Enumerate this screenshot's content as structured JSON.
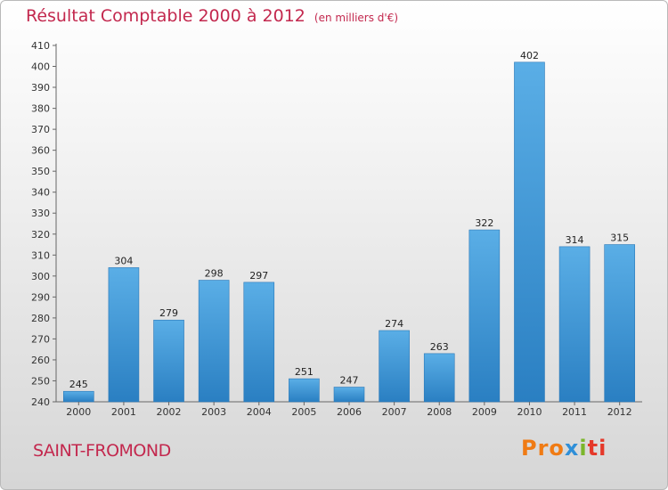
{
  "header": {
    "title": "Résultat Comptable 2000 à 2012",
    "subtitle": "(en milliers d'€)"
  },
  "footer": {
    "place": "SAINT-FROMOND",
    "logo_parts": [
      "Pro",
      "x",
      "i",
      "ti"
    ]
  },
  "colors": {
    "bar_light": "#5aaee6",
    "bar_dark": "#2a7fc2",
    "accent": "#c3284e"
  },
  "chart_data": {
    "type": "bar",
    "title": "Résultat Comptable 2000 à 2012",
    "subtitle": "(en milliers d'€)",
    "xlabel": "",
    "ylabel": "",
    "categories": [
      "2000",
      "2001",
      "2002",
      "2003",
      "2004",
      "2005",
      "2006",
      "2007",
      "2008",
      "2009",
      "2010",
      "2011",
      "2012"
    ],
    "values": [
      245,
      304,
      279,
      298,
      297,
      251,
      247,
      274,
      263,
      322,
      402,
      314,
      315
    ],
    "ylim": [
      240,
      410
    ],
    "ytick_step": 10,
    "grid": false,
    "legend": "none"
  }
}
